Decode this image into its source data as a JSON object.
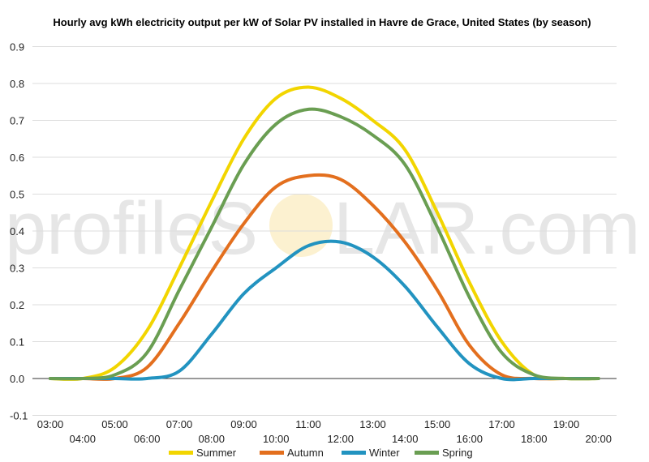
{
  "chart_data": {
    "type": "line",
    "title": "Hourly avg kWh electricity output per kW of Solar PV installed in Havre de Grace, United States (by season)",
    "xlabel": "",
    "ylabel": "",
    "watermark": {
      "left": "profileS",
      "right": "LAR.com"
    },
    "categories": [
      "03:00",
      "04:00",
      "05:00",
      "06:00",
      "07:00",
      "08:00",
      "09:00",
      "10:00",
      "11:00",
      "12:00",
      "13:00",
      "14:00",
      "15:00",
      "16:00",
      "17:00",
      "18:00",
      "19:00",
      "20:00"
    ],
    "y_ticks": [
      "0.9",
      "0.8",
      "0.7",
      "0.6",
      "0.5",
      "0.4",
      "0.3",
      "0.2",
      "0.1",
      "0.0",
      "-0.1"
    ],
    "ylim": [
      -0.1,
      0.9
    ],
    "grid": true,
    "legend_position": "bottom",
    "series": [
      {
        "name": "Summer",
        "color": "#f2d500",
        "values": [
          0,
          0,
          0.03,
          0.13,
          0.3,
          0.48,
          0.65,
          0.76,
          0.79,
          0.76,
          0.7,
          0.62,
          0.45,
          0.26,
          0.1,
          0.01,
          0,
          0
        ]
      },
      {
        "name": "Autumn",
        "color": "#e36f1e",
        "values": [
          0,
          0,
          0,
          0.03,
          0.15,
          0.29,
          0.42,
          0.52,
          0.55,
          0.54,
          0.47,
          0.37,
          0.24,
          0.09,
          0.01,
          0,
          0,
          0
        ]
      },
      {
        "name": "Winter",
        "color": "#2293c0",
        "values": [
          0,
          0,
          0,
          0,
          0.02,
          0.12,
          0.23,
          0.3,
          0.36,
          0.37,
          0.33,
          0.25,
          0.14,
          0.04,
          0,
          0,
          0,
          0
        ]
      },
      {
        "name": "Spring",
        "color": "#6a9e52",
        "values": [
          0,
          0,
          0.01,
          0.07,
          0.24,
          0.41,
          0.58,
          0.69,
          0.73,
          0.71,
          0.66,
          0.58,
          0.41,
          0.22,
          0.07,
          0.01,
          0,
          0
        ]
      }
    ]
  }
}
